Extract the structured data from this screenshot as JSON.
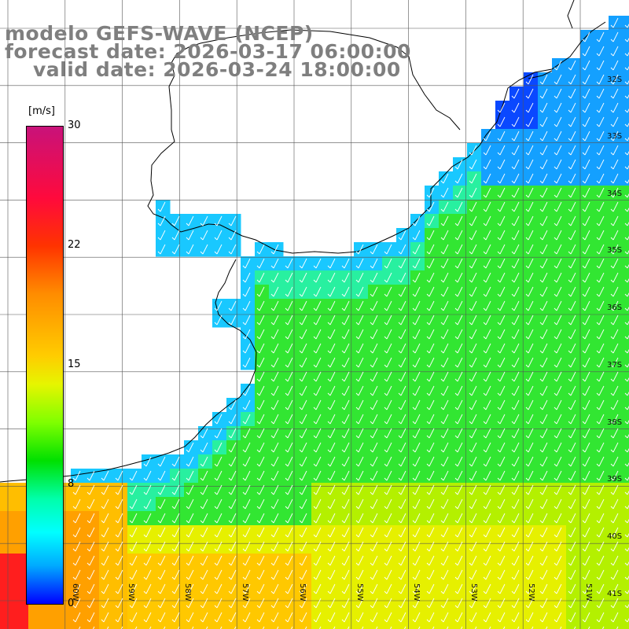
{
  "header": {
    "line1": "modelo GEFS-WAVE (NCEP)",
    "line2": "forecast date: 2026-03-17 06:00:00",
    "line3": "valid date: 2026-03-24 18:00:00"
  },
  "colorbar": {
    "unit": "[m/s]",
    "ticks": [
      "30",
      "22",
      "15",
      "8",
      "0"
    ]
  },
  "axes": {
    "lat_labels": [
      "32S",
      "33S",
      "34S",
      "35S",
      "36S",
      "37S",
      "38S",
      "39S",
      "40S",
      "41S"
    ],
    "lon_labels": [
      "60W",
      "59W",
      "58W",
      "57W",
      "56W",
      "55W",
      "54W",
      "53W",
      "52W",
      "51W"
    ]
  },
  "colors": {
    "calm": "#0a48ff",
    "low": "#19c8ff",
    "moderate": "#32e632",
    "strong": "#d2f000",
    "high": "#ffa000"
  }
}
